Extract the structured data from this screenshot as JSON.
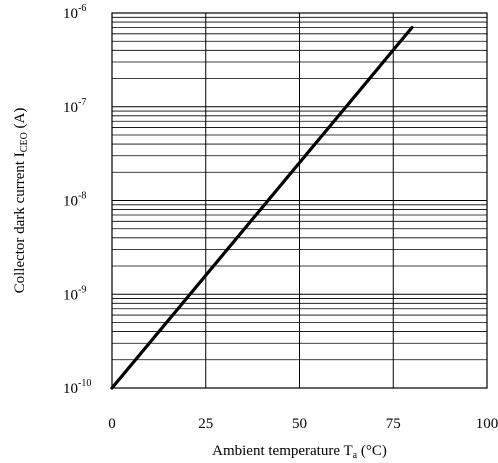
{
  "chart_data": {
    "type": "line",
    "xlabel": {
      "main": "Ambient temperature T",
      "sub": "a",
      "unit": " (°C)"
    },
    "ylabel": {
      "main": "Collector dark current I",
      "sub": "CEO",
      "unit": " (A)"
    },
    "xlim": [
      0,
      100
    ],
    "ylim": [
      1e-10,
      1e-06
    ],
    "yscale": "log",
    "grid": true,
    "x_ticks": [
      "0",
      "25",
      "50",
      "75",
      "100"
    ],
    "x_tick_values": [
      0,
      25,
      50,
      75,
      100
    ],
    "y_ticks": [
      {
        "base": "10",
        "exp": "-10",
        "value": 1e-10
      },
      {
        "base": "10",
        "exp": "-9",
        "value": 1e-09
      },
      {
        "base": "10",
        "exp": "-8",
        "value": 1e-08
      },
      {
        "base": "10",
        "exp": "-7",
        "value": 1e-07
      },
      {
        "base": "10",
        "exp": "-6",
        "value": 1e-06
      }
    ],
    "series": [
      {
        "x": [
          0,
          80
        ],
        "y": [
          1e-10,
          7e-07
        ],
        "color": "#000000"
      }
    ]
  }
}
